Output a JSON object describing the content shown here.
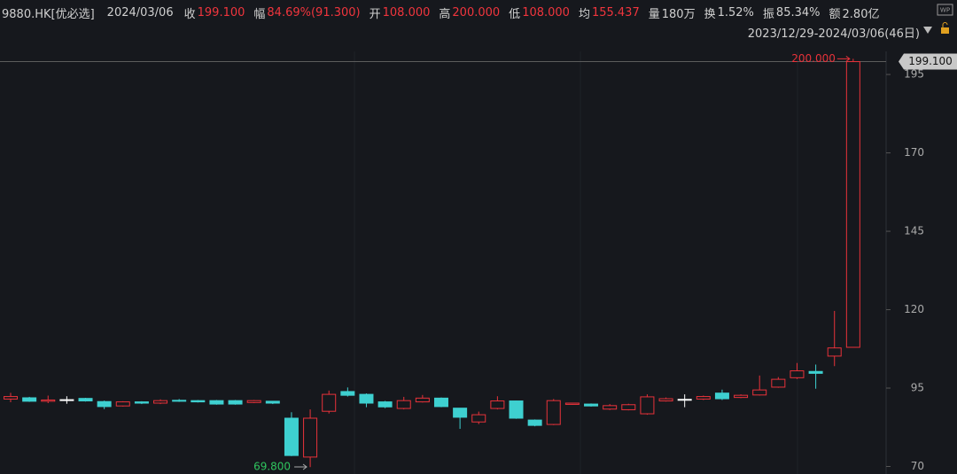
{
  "chart_data": {
    "type": "candlestick",
    "header": {
      "symbol": "9880.HK[优必选]",
      "date": "2024/03/06",
      "fields": [
        {
          "label": "收",
          "value": "199.100",
          "color": "#f0353d"
        },
        {
          "label": "幅",
          "value": "84.69%(91.300)",
          "color": "#f0353d"
        },
        {
          "label": "开",
          "value": "108.000",
          "color": "#f0353d"
        },
        {
          "label": "高",
          "value": "200.000",
          "color": "#f0353d"
        },
        {
          "label": "低",
          "value": "108.000",
          "color": "#f0353d"
        },
        {
          "label": "均",
          "value": "155.437",
          "color": "#f0353d"
        },
        {
          "label": "量",
          "value": "180万",
          "color": "#d0d0d0"
        },
        {
          "label": "换",
          "value": "1.52%",
          "color": "#d0d0d0"
        },
        {
          "label": "振",
          "value": "85.34%",
          "color": "#d0d0d0"
        },
        {
          "label": "额",
          "value": "2.80亿",
          "color": "#d0d0d0"
        }
      ],
      "range": "2023/12/29-2024/03/06(46日)"
    },
    "open": [
      91.5,
      91.9,
      90.8,
      91.3,
      91.7,
      90.7,
      89.3,
      90.6,
      90.2,
      91.1,
      91.0,
      91.0,
      91.0,
      90.4,
      90.8,
      85.4,
      73.0,
      87.6,
      93.9,
      93.0,
      90.6,
      88.5,
      90.6,
      91.8,
      88.6,
      84.2,
      88.5,
      90.9,
      84.8,
      83.4,
      89.8,
      89.9,
      88.3,
      88.1,
      86.8,
      90.9,
      91.4,
      91.5,
      93.4,
      92.0,
      92.8,
      95.3,
      98.3,
      100.3,
      105.2,
      108.0
    ],
    "high": [
      93.5,
      92.2,
      92.6,
      92.4,
      91.9,
      91.0,
      90.8,
      90.8,
      91.4,
      91.5,
      91.2,
      91.2,
      91.2,
      91.2,
      90.9,
      87.3,
      88.2,
      94.2,
      95.2,
      93.3,
      90.9,
      92.2,
      92.8,
      92.0,
      88.6,
      87.5,
      92.4,
      91.0,
      85.0,
      91.5,
      90.3,
      90.1,
      89.9,
      90.0,
      93.0,
      92.0,
      93.0,
      92.6,
      94.5,
      93.0,
      99.0,
      98.5,
      103.0,
      102.5,
      119.6,
      200.0
    ],
    "low": [
      90.5,
      90.6,
      90.2,
      90.0,
      90.7,
      88.3,
      89.1,
      89.9,
      89.9,
      90.6,
      90.4,
      89.7,
      89.7,
      90.2,
      89.9,
      73.3,
      69.8,
      86.9,
      92.3,
      88.9,
      88.6,
      88.2,
      90.4,
      88.9,
      82.0,
      83.5,
      88.2,
      85.2,
      82.8,
      83.2,
      89.7,
      89.1,
      88.0,
      87.9,
      86.5,
      90.7,
      88.9,
      91.2,
      91.2,
      91.8,
      92.6,
      95.1,
      97.9,
      94.8,
      102.0,
      108.0
    ],
    "close": [
      92.3,
      90.8,
      91.2,
      91.3,
      90.9,
      89.1,
      90.6,
      90.2,
      91.0,
      90.8,
      90.6,
      89.9,
      89.9,
      91.0,
      90.2,
      73.5,
      85.4,
      93.0,
      92.7,
      90.2,
      89.0,
      91.0,
      91.8,
      89.1,
      85.7,
      86.5,
      90.9,
      85.4,
      83.1,
      91.0,
      90.2,
      89.3,
      89.4,
      89.7,
      92.2,
      91.6,
      91.4,
      92.3,
      91.6,
      92.7,
      94.4,
      97.8,
      100.5,
      99.7,
      107.8,
      199.1
    ],
    "up_color": "#e8323a",
    "down_color": "#3ed0d0",
    "flat_color": "#ffffff",
    "low_label_color": "#2fc45e",
    "ylim": [
      67.6,
      201.8
    ],
    "yticks": [
      70,
      95,
      120,
      145,
      170,
      195
    ],
    "high_annotation": "200.000",
    "low_annotation": "69.800",
    "last_price_label": "199.100"
  }
}
